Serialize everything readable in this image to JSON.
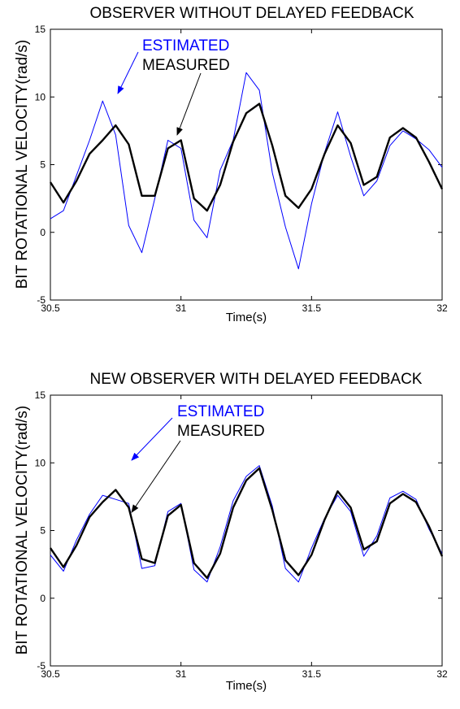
{
  "chart_data": [
    {
      "type": "line",
      "title": "OBSERVER WITHOUT DELAYED FEEDBACK",
      "xlabel": "Time(s)",
      "ylabel": "BIT ROTATIONAL VELOCITY(rad/s)",
      "xlim": [
        30.5,
        32
      ],
      "ylim": [
        -5,
        15
      ],
      "xticks": [
        "30.5",
        "31",
        "31.5",
        "32"
      ],
      "yticks": [
        "-5",
        "0",
        "5",
        "10",
        "15"
      ],
      "grid": false,
      "annotations": [
        {
          "text": "ESTIMATED",
          "color": "#0000ff",
          "points_to": {
            "x": 30.68,
            "y": 10.3
          }
        },
        {
          "text": "MEASURED",
          "color": "#000000",
          "points_to": {
            "x": 30.98,
            "y": 7.0
          }
        }
      ],
      "series": [
        {
          "name": "MEASURED",
          "color": "#000000",
          "x": [
            30.5,
            30.55,
            30.6,
            30.65,
            30.7,
            30.75,
            30.8,
            30.85,
            30.9,
            30.95,
            31.0,
            31.05,
            31.1,
            31.15,
            31.2,
            31.25,
            31.3,
            31.35,
            31.4,
            31.45,
            31.5,
            31.55,
            31.6,
            31.65,
            31.7,
            31.75,
            31.8,
            31.85,
            31.9,
            31.95,
            32.0
          ],
          "y": [
            3.7,
            2.2,
            3.8,
            5.8,
            6.8,
            7.9,
            6.5,
            2.7,
            2.7,
            6.2,
            6.8,
            2.5,
            1.6,
            3.5,
            6.7,
            8.8,
            9.5,
            6.4,
            2.7,
            1.8,
            3.2,
            5.8,
            7.9,
            6.6,
            3.5,
            4.1,
            7.0,
            7.7,
            7.0,
            5.2,
            3.2
          ]
        },
        {
          "name": "ESTIMATED",
          "color": "#0000ff",
          "x": [
            30.5,
            30.55,
            30.6,
            30.65,
            30.7,
            30.75,
            30.8,
            30.85,
            30.9,
            30.95,
            31.0,
            31.05,
            31.1,
            31.15,
            31.2,
            31.25,
            31.3,
            31.35,
            31.4,
            31.45,
            31.5,
            31.55,
            31.6,
            31.65,
            31.7,
            31.75,
            31.8,
            31.85,
            31.9,
            31.95,
            32.0
          ],
          "y": [
            1.0,
            1.6,
            4.2,
            6.8,
            9.7,
            7.2,
            0.5,
            -1.5,
            2.5,
            6.8,
            6.2,
            0.9,
            -0.4,
            4.6,
            6.8,
            11.8,
            10.5,
            4.4,
            0.4,
            -2.7,
            2.1,
            5.9,
            8.9,
            5.6,
            2.7,
            3.8,
            6.4,
            7.5,
            6.9,
            6.1,
            4.8
          ]
        }
      ]
    },
    {
      "type": "line",
      "title": "NEW OBSERVER WITH DELAYED FEEDBACK",
      "xlabel": "Time(s)",
      "ylabel": "BIT ROTATIONAL VELOCITY(rad/s)",
      "xlim": [
        30.5,
        32
      ],
      "ylim": [
        -5,
        15
      ],
      "xticks": [
        "30.5",
        "31",
        "31.5",
        "32"
      ],
      "yticks": [
        "-5",
        "0",
        "5",
        "10",
        "15"
      ],
      "grid": false,
      "annotations": [
        {
          "text": "ESTIMATED",
          "color": "#0000ff",
          "points_to": {
            "x": 30.78,
            "y": 10.2
          }
        },
        {
          "text": "MEASURED",
          "color": "#000000",
          "points_to": {
            "x": 30.8,
            "y": 7.6
          }
        }
      ],
      "series": [
        {
          "name": "MEASURED",
          "color": "#000000",
          "x": [
            30.5,
            30.55,
            30.6,
            30.65,
            30.7,
            30.75,
            30.8,
            30.85,
            30.9,
            30.95,
            31.0,
            31.05,
            31.1,
            31.15,
            31.2,
            31.25,
            31.3,
            31.35,
            31.4,
            31.45,
            31.5,
            31.55,
            31.6,
            31.65,
            31.7,
            31.75,
            31.8,
            31.85,
            31.9,
            31.95,
            32.0
          ],
          "y": [
            3.7,
            2.3,
            3.9,
            6.0,
            7.1,
            8.0,
            6.7,
            2.9,
            2.6,
            6.1,
            6.9,
            2.6,
            1.5,
            3.3,
            6.7,
            8.7,
            9.6,
            6.5,
            2.8,
            1.7,
            3.2,
            5.8,
            7.9,
            6.7,
            3.6,
            4.2,
            7.0,
            7.7,
            7.1,
            5.3,
            3.1
          ]
        },
        {
          "name": "ESTIMATED",
          "color": "#0000ff",
          "x": [
            30.5,
            30.55,
            30.6,
            30.65,
            30.7,
            30.75,
            30.8,
            30.85,
            30.9,
            30.95,
            31.0,
            31.05,
            31.1,
            31.15,
            31.2,
            31.25,
            31.3,
            31.35,
            31.4,
            31.45,
            31.5,
            31.55,
            31.6,
            31.65,
            31.7,
            31.75,
            31.8,
            31.85,
            31.9,
            31.95,
            32.0
          ],
          "y": [
            3.2,
            2.0,
            4.3,
            6.2,
            7.6,
            7.3,
            7.0,
            2.2,
            2.4,
            6.4,
            7.0,
            2.1,
            1.2,
            3.8,
            7.2,
            9.0,
            9.8,
            6.8,
            2.2,
            1.2,
            3.7,
            5.9,
            7.6,
            6.4,
            3.1,
            4.6,
            7.4,
            7.9,
            7.3,
            5.1,
            3.3
          ]
        }
      ]
    }
  ]
}
